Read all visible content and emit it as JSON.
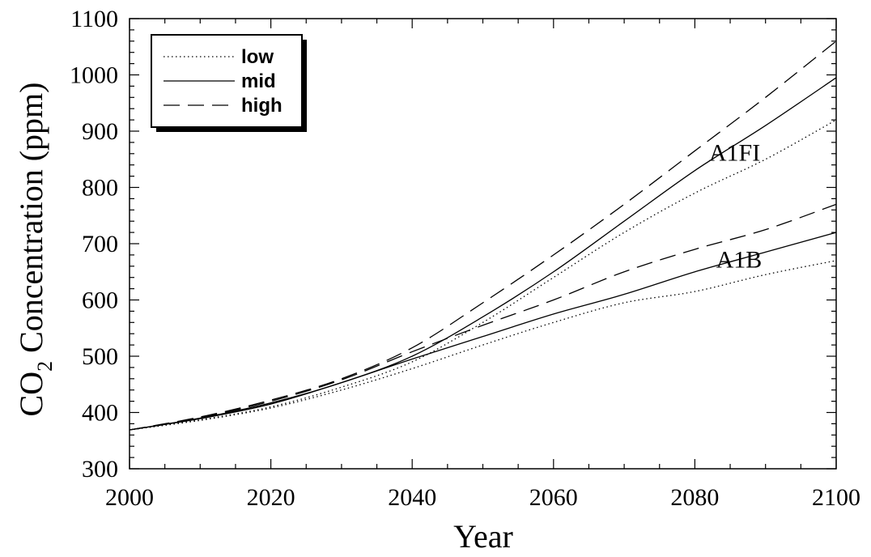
{
  "chart_data": {
    "type": "line",
    "xlabel": "Year",
    "ylabel_main": "CO",
    "ylabel_sub": "2",
    "ylabel_rest": " Concentration (ppm)",
    "xlim": [
      2000,
      2100
    ],
    "ylim": [
      300,
      1100
    ],
    "xticks": [
      2000,
      2020,
      2040,
      2060,
      2080,
      2100
    ],
    "yticks": [
      300,
      400,
      500,
      600,
      700,
      800,
      900,
      1000,
      1100
    ],
    "grid": false,
    "legend_position": "top-left",
    "legend": [
      {
        "label": "low",
        "style": "dotted"
      },
      {
        "label": "mid",
        "style": "solid"
      },
      {
        "label": "high",
        "style": "dashed"
      }
    ],
    "x": [
      2000,
      2010,
      2020,
      2030,
      2040,
      2050,
      2060,
      2070,
      2080,
      2090,
      2100
    ],
    "series": [
      {
        "scenario": "A1FI",
        "style": "dotted",
        "values": [
          369,
          387,
          410,
          445,
          490,
          560,
          640,
          720,
          790,
          850,
          920
        ]
      },
      {
        "scenario": "A1FI",
        "style": "solid",
        "values": [
          369,
          390,
          417,
          453,
          500,
          570,
          650,
          740,
          830,
          910,
          995
        ]
      },
      {
        "scenario": "A1FI",
        "style": "dashed",
        "values": [
          369,
          392,
          422,
          460,
          515,
          595,
          680,
          770,
          865,
          960,
          1060
        ]
      },
      {
        "scenario": "A1B",
        "style": "dotted",
        "values": [
          369,
          386,
          408,
          440,
          478,
          520,
          560,
          595,
          615,
          645,
          670
        ]
      },
      {
        "scenario": "A1B",
        "style": "solid",
        "values": [
          369,
          389,
          415,
          453,
          495,
          535,
          575,
          610,
          650,
          685,
          720
        ]
      },
      {
        "scenario": "A1B",
        "style": "dashed",
        "values": [
          369,
          391,
          420,
          458,
          508,
          555,
          600,
          650,
          690,
          725,
          770
        ]
      }
    ],
    "annotations": [
      {
        "text": "A1FI",
        "x": 2082,
        "y": 862
      },
      {
        "text": "A1B",
        "x": 2083,
        "y": 672
      }
    ]
  }
}
